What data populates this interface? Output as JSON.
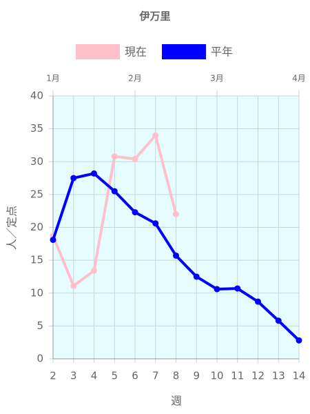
{
  "chart_data": {
    "type": "line",
    "title": "伊万里",
    "x": [
      2,
      3,
      4,
      5,
      6,
      7,
      8,
      9,
      10,
      11,
      12,
      13,
      14
    ],
    "series": [
      {
        "name": "現在",
        "color": "#ffc0cb",
        "values": [
          18.7,
          11.1,
          13.4,
          30.8,
          30.4,
          34.0,
          22.0,
          null,
          null,
          null,
          null,
          null,
          null
        ]
      },
      {
        "name": "平年",
        "color": "#0000ff",
        "values": [
          18.1,
          27.5,
          28.2,
          25.5,
          22.3,
          20.6,
          15.7,
          12.5,
          10.6,
          10.7,
          8.7,
          5.8,
          2.8
        ]
      }
    ],
    "xlim": [
      2,
      14
    ],
    "xticks": [
      2,
      3,
      4,
      5,
      6,
      7,
      8,
      9,
      10,
      11,
      12,
      13,
      14
    ],
    "x2ticks": [
      {
        "value": 2,
        "label": "1月"
      },
      {
        "value": 6,
        "label": "2月"
      },
      {
        "value": 10,
        "label": "3月"
      },
      {
        "value": 14,
        "label": "4月"
      }
    ],
    "ylim": [
      0,
      40
    ],
    "yticks": [
      0,
      5,
      10,
      15,
      20,
      25,
      30,
      35,
      40
    ],
    "xlabel": "週",
    "ylabel": "人／定点",
    "grid": true,
    "legend": "top",
    "background": "#e6fdff"
  }
}
